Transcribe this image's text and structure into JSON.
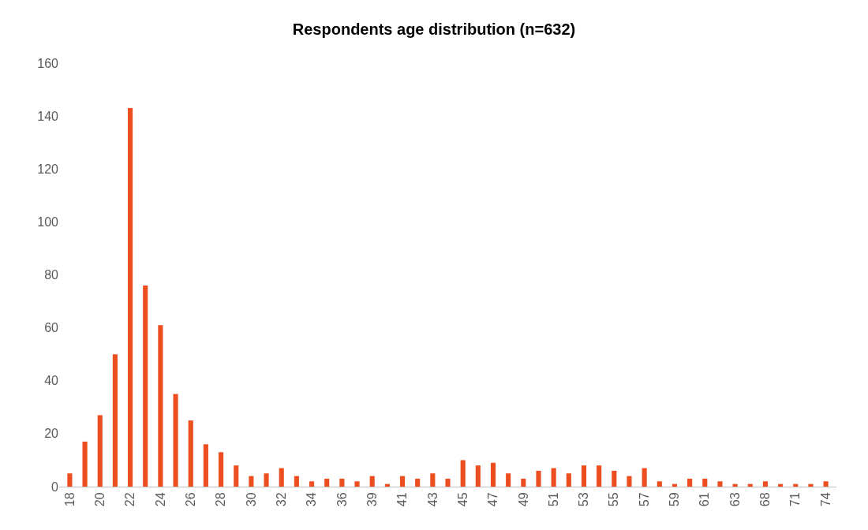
{
  "chart_data": {
    "type": "bar",
    "title": "Respondents age distribution (n=632)",
    "categories": [
      "18",
      null,
      "20",
      null,
      "22",
      null,
      "24",
      null,
      "26",
      null,
      "28",
      null,
      "30",
      null,
      "32",
      null,
      "34",
      null,
      "36",
      null,
      "39",
      null,
      "41",
      null,
      "43",
      null,
      "45",
      null,
      "47",
      null,
      "49",
      null,
      "51",
      null,
      "53",
      null,
      "55",
      null,
      "57",
      null,
      "59",
      null,
      "61",
      null,
      "63",
      null,
      "68",
      null,
      "71",
      null,
      "74"
    ],
    "values": [
      5,
      17,
      27,
      50,
      143,
      76,
      61,
      35,
      25,
      16,
      13,
      8,
      4,
      5,
      7,
      4,
      2,
      3,
      3,
      2,
      4,
      1,
      4,
      3,
      5,
      3,
      10,
      8,
      9,
      5,
      3,
      6,
      7,
      5,
      8,
      8,
      6,
      4,
      7,
      2,
      1,
      3,
      3,
      2,
      1,
      1,
      2,
      1,
      1,
      1,
      2
    ],
    "color": "#ec4e20",
    "ylim": [
      0,
      160
    ],
    "yticks": [
      0,
      20,
      40,
      60,
      80,
      100,
      120,
      140,
      160
    ],
    "grid": false,
    "legend": false
  }
}
